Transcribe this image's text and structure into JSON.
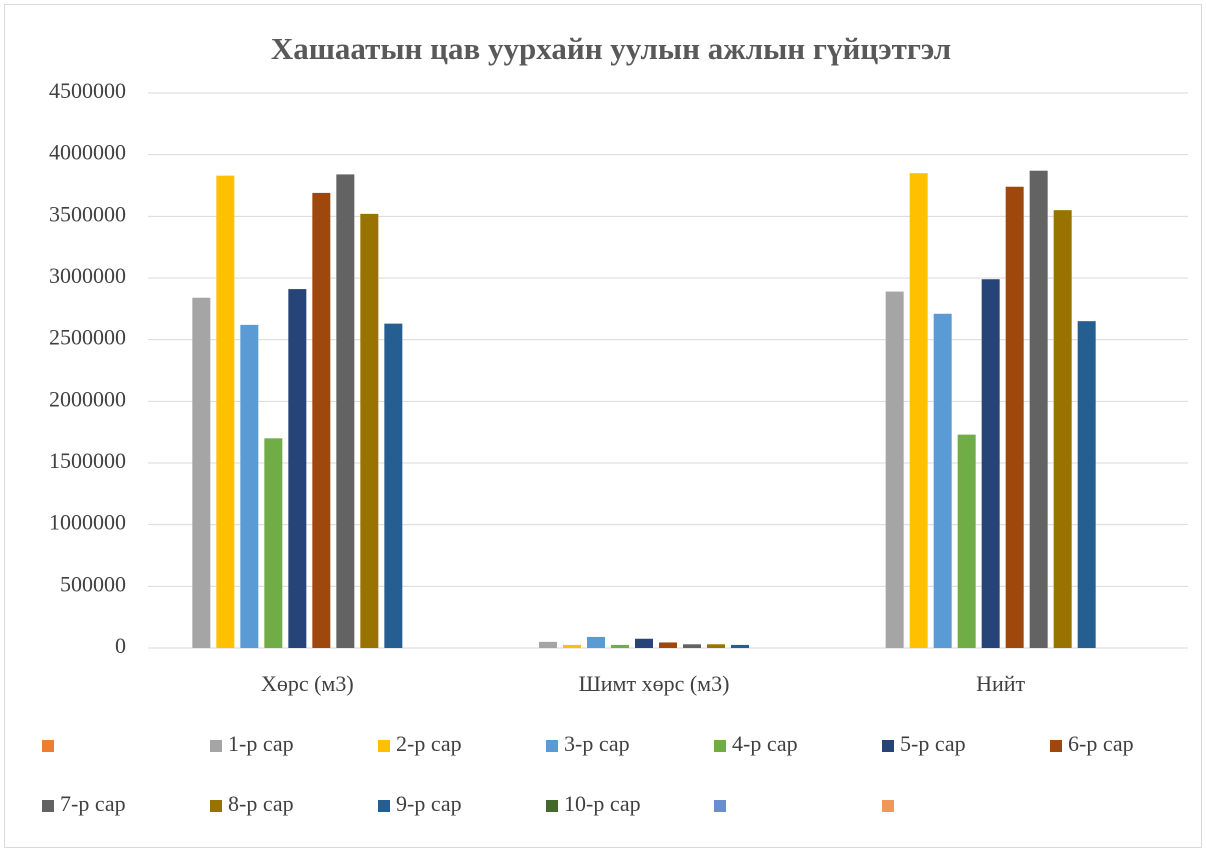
{
  "chart_data": {
    "type": "bar",
    "title": "Хашаатын цав уурхайн уулын ажлын гүйцэтгэл",
    "categories": [
      "Хөрс (м3)",
      "Шимт хөрс (м3)",
      "Нийт"
    ],
    "series": [
      {
        "name": null,
        "color": "#ed7d31",
        "values": [
          null,
          null,
          null
        ]
      },
      {
        "name": "1-р сар",
        "color": "#a5a5a5",
        "values": [
          2840000,
          50000,
          2890000
        ]
      },
      {
        "name": "2-р сар",
        "color": "#ffc000",
        "values": [
          3830000,
          25000,
          3850000
        ]
      },
      {
        "name": "3-р сар",
        "color": "#5b9bd5",
        "values": [
          2620000,
          90000,
          2710000
        ]
      },
      {
        "name": "4-р сар",
        "color": "#70ad47",
        "values": [
          1700000,
          25000,
          1730000
        ]
      },
      {
        "name": "5-р сар",
        "color": "#264478",
        "values": [
          2910000,
          75000,
          2990000
        ]
      },
      {
        "name": "6-р сар",
        "color": "#9e480e",
        "values": [
          3690000,
          45000,
          3740000
        ]
      },
      {
        "name": "7-р сар",
        "color": "#636363",
        "values": [
          3840000,
          30000,
          3870000
        ]
      },
      {
        "name": "8-р сар",
        "color": "#997300",
        "values": [
          3520000,
          30000,
          3550000
        ]
      },
      {
        "name": "9-р сар",
        "color": "#255e91",
        "values": [
          2630000,
          25000,
          2650000
        ]
      },
      {
        "name": "10-р сар",
        "color": "#43682b",
        "values": [
          null,
          null,
          null
        ]
      },
      {
        "name": null,
        "color": "#698ed0",
        "values": [
          null,
          null,
          null
        ]
      },
      {
        "name": null,
        "color": "#f1975a",
        "values": [
          null,
          null,
          null
        ]
      }
    ],
    "ylim": [
      0,
      4500000
    ],
    "yticks": [
      0,
      500000,
      1000000,
      1500000,
      2000000,
      2500000,
      3000000,
      3500000,
      4000000,
      4500000
    ],
    "grid": true,
    "legend": "bottom"
  }
}
